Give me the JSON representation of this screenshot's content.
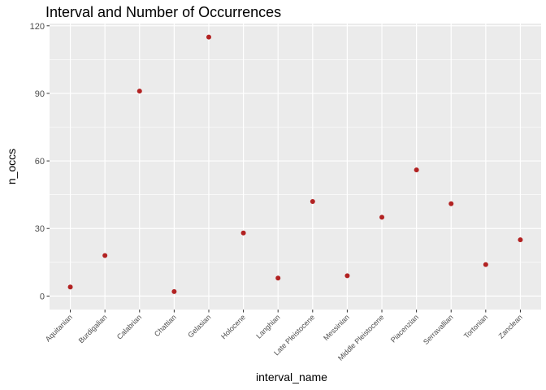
{
  "chart_data": {
    "type": "scatter",
    "title": "Interval and Number of Occurrences",
    "xlabel": "interval_name",
    "ylabel": "n_occs",
    "categories": [
      "Aquitanian",
      "Burdigalian",
      "Calabrian",
      "Chattian",
      "Gelasian",
      "Holocene",
      "Langhian",
      "Late Pleistocene",
      "Messinian",
      "Middle Pleistocene",
      "Piacenzian",
      "Serravallian",
      "Tortonian",
      "Zanclean"
    ],
    "series": [
      {
        "values": [
          4,
          18,
          91,
          2,
          115,
          28,
          8,
          42,
          9,
          35,
          56,
          41,
          14,
          25
        ]
      }
    ],
    "yticks": [
      0,
      30,
      60,
      90,
      120
    ],
    "ylim": [
      -6,
      121
    ],
    "grid": true,
    "point_color": "#b22222",
    "panel_color": "#ebebeb",
    "grid_color": "#ffffff",
    "x_tick_label_angle": -45
  }
}
